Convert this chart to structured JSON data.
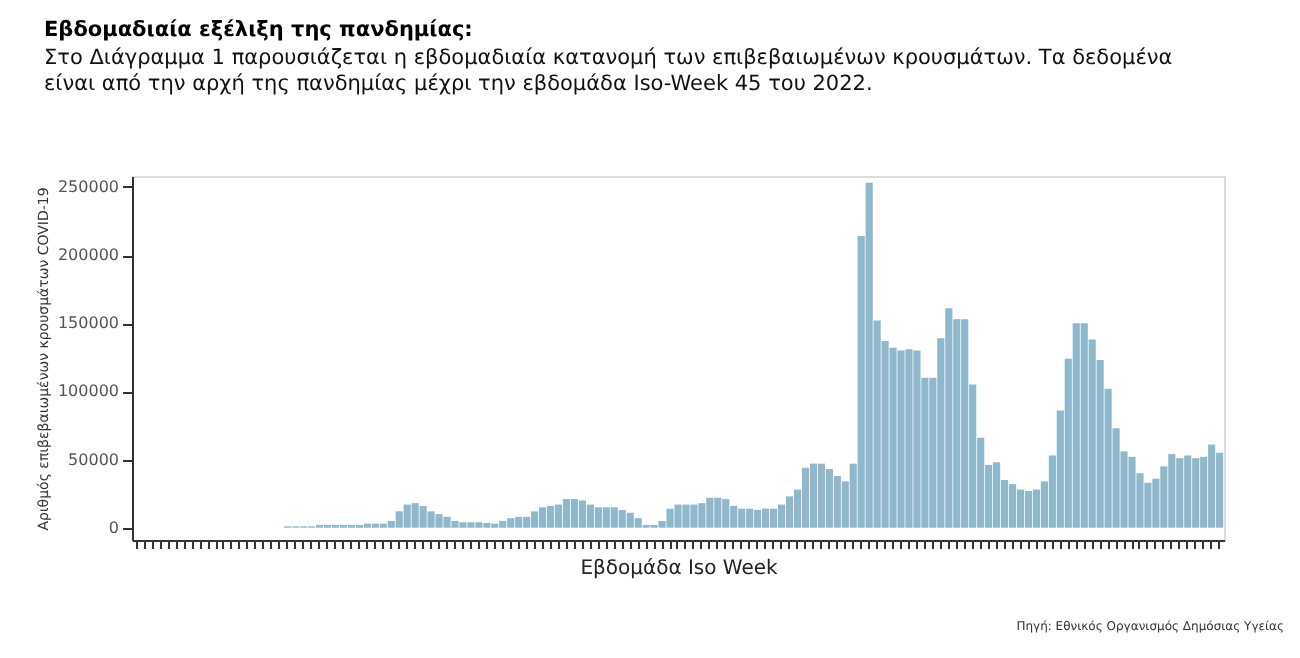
{
  "chart_data": {
    "type": "bar",
    "title": "Εβδομαδιαία εξέλιξη της πανδημίας:",
    "subtitle": "Στο Διάγραμμα 1 παρουσιάζεται η εβδομαδιαία κατανομή των επιβεβαιωμένων κρουσμάτων.  Τα δεδομένα είναι από την αρχή της πανδημίας μέχρι την εβδομάδα Iso-Week 45 του 2022.",
    "xlabel": "Εβδομάδα Iso Week",
    "ylabel": "Αριθμός επιβεβαιωμένων κρουσμάτων COVID-19",
    "annotations": [
      "Πηγή: Εθνικός Οργανισμός Δημόσιας Υγείας"
    ],
    "color": "#8fb8cc",
    "values": [
      0,
      0,
      0,
      0,
      0,
      0,
      0,
      0,
      0,
      0,
      0,
      0,
      0,
      0,
      0,
      0,
      0,
      0,
      0,
      1000,
      1000,
      1000,
      1000,
      2000,
      2000,
      2000,
      2000,
      2000,
      2000,
      3000,
      3000,
      3000,
      5000,
      12000,
      17000,
      18000,
      16000,
      12000,
      10000,
      8000,
      5000,
      4000,
      4000,
      4000,
      3500,
      3000,
      5000,
      7000,
      8000,
      8000,
      12000,
      15000,
      16000,
      17000,
      21000,
      21000,
      20000,
      17000,
      15000,
      15000,
      15000,
      13000,
      11000,
      7000,
      2000,
      2000,
      5000,
      14000,
      17000,
      17000,
      17000,
      18000,
      22000,
      22000,
      21000,
      16000,
      14000,
      14000,
      13000,
      14000,
      14000,
      17000,
      23000,
      28000,
      44000,
      47000,
      47000,
      43000,
      38000,
      34000,
      47000,
      214000,
      253000,
      152000,
      137000,
      132000,
      130000,
      131000,
      130000,
      110000,
      110000,
      139000,
      161000,
      153000,
      153000,
      105000,
      66000,
      46000,
      48000,
      35000,
      32000,
      28000,
      27000,
      28000,
      34000,
      53000,
      86000,
      124000,
      150000,
      150000,
      138000,
      123000,
      102000,
      73000,
      56000,
      52000,
      40000,
      33000,
      36000,
      45000,
      54000,
      51000,
      53000,
      51000,
      52000,
      61000,
      55000
    ],
    "ylim": [
      -9000,
      258000
    ],
    "yticks": [
      0,
      50000,
      100000,
      150000,
      200000,
      250000
    ],
    "grid": false,
    "tick_labels": "y"
  }
}
